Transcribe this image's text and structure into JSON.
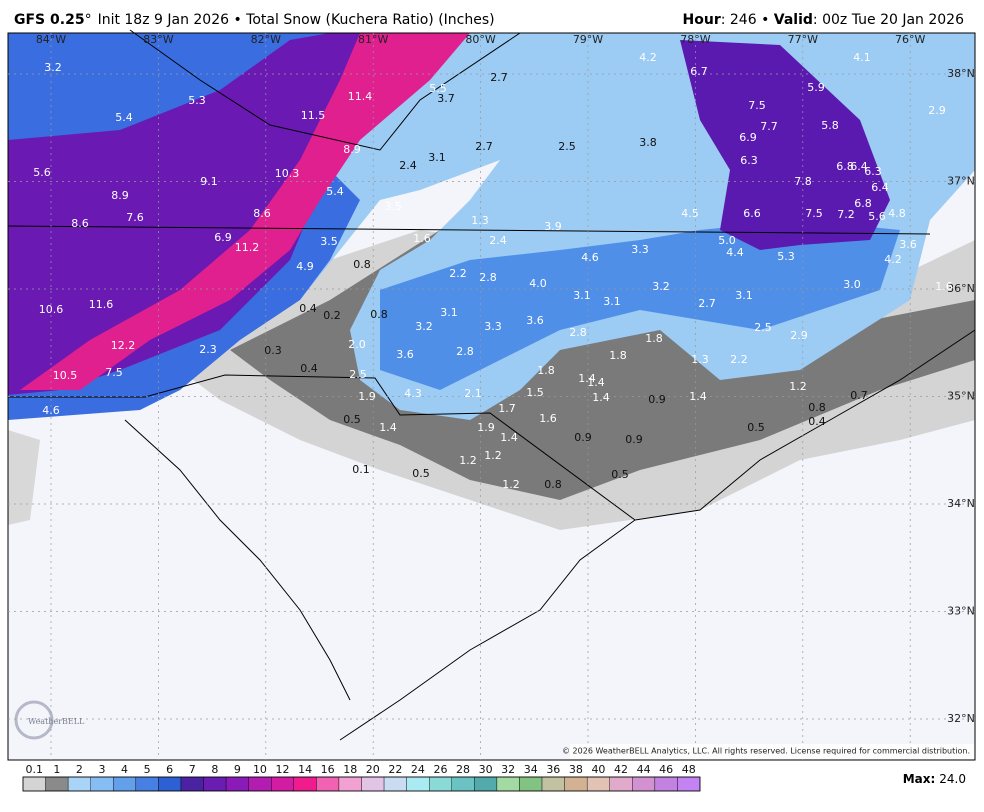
{
  "header": {
    "model": "GFS 0.25",
    "degree": "°",
    "init": "Init 18z 9 Jan 2026 • Total Snow (Kuchera Ratio) (Inches)",
    "hour_key": "Hour",
    "hour_val": ": 246 • ",
    "valid_key": "Valid",
    "valid_val": ": 00z Tue 20 Jan 2026"
  },
  "longitudes": [
    "84°W",
    "83°W",
    "82°W",
    "81°W",
    "80°W",
    "79°W",
    "78°W",
    "77°W",
    "76°W"
  ],
  "latitudes": [
    "38°N",
    "37°N",
    "36°N",
    "35°N",
    "34°N",
    "33°N",
    "32°N"
  ],
  "map_labels": [
    "3.2",
    "5.3",
    "5.4",
    "11.4",
    "5.5",
    "3.7",
    "2.7",
    "4.2",
    "6.7",
    "4.1",
    "5.9",
    "7.5",
    "2.9",
    "7.7",
    "5.8",
    "11.5",
    "6.9",
    "3.8",
    "2.7",
    "2.5",
    "8.9",
    "3.1",
    "6.3",
    "2.4",
    "6.8",
    "6.4",
    "6.3",
    "5.6",
    "10.3",
    "9.1",
    "7.8",
    "6.4",
    "8.9",
    "5.4",
    "3.5",
    "6.8",
    "7.6",
    "8.6",
    "4.5",
    "6.6",
    "7.5",
    "7.2",
    "5.6",
    "4.8",
    "8.6",
    "1.3",
    "3.9",
    "6.9",
    "1.6",
    "2.4",
    "3.5",
    "5.0",
    "3.6",
    "11.2",
    "3.3",
    "4.4",
    "5.3",
    "4.6",
    "4.2",
    "0.8",
    "4.9",
    "2.2",
    "2.8",
    "4.0",
    "3.2",
    "3.0",
    "1.6",
    "3.1",
    "3.1",
    "2.7",
    "3.1",
    "10.6",
    "11.6",
    "0.4",
    "0.2",
    "0.8",
    "3.1",
    "3.2",
    "3.3",
    "3.6",
    "2.8",
    "2.5",
    "2.9",
    "1.8",
    "12.2",
    "2.3",
    "0.3",
    "2.0",
    "3.6",
    "2.8",
    "1.8",
    "1.3",
    "2.2",
    "0.4",
    "1.8",
    "10.5",
    "7.5",
    "2.5",
    "1.4",
    "1.4",
    "1.2",
    "4.3",
    "2.1",
    "1.5",
    "1.9",
    "1.4",
    "0.9",
    "1.4",
    "0.7",
    "4.6",
    "1.7",
    "0.8",
    "0.5",
    "1.6",
    "0.4",
    "0.5",
    "1.4",
    "1.9",
    "1.4",
    "0.9",
    "0.9",
    "1.2",
    "1.2",
    "0.1",
    "0.5",
    "0.5",
    "1.2",
    "0.8"
  ],
  "copyright": "© 2026 WeatherBELL Analytics, LLC. All rights reserved. License required for commercial distribution.",
  "logo": "WeatherBELL",
  "colorbar": {
    "labels": [
      "0.1",
      "1",
      "2",
      "3",
      "4",
      "5",
      "6",
      "7",
      "8",
      "9",
      "10",
      "12",
      "14",
      "16",
      "18",
      "20",
      "22",
      "24",
      "26",
      "28",
      "30",
      "32",
      "34",
      "36",
      "38",
      "40",
      "42",
      "44",
      "46",
      "48"
    ],
    "colors": [
      "#d4d4d4",
      "#8a8a8a",
      "#a9d4f7",
      "#86bdf2",
      "#649fea",
      "#4680e2",
      "#2d60d2",
      "#4a22a2",
      "#6a1db2",
      "#8b1bb8",
      "#b21cb0",
      "#d21ca2",
      "#f01c8e",
      "#f262b2",
      "#f2a2d2",
      "#e2c4e6",
      "#cadcf2",
      "#aaeaf2",
      "#8adad8",
      "#6ac2c2",
      "#52aaaa",
      "#a2daa2",
      "#82c282",
      "#c2c2a2",
      "#d2b292",
      "#e2c2b2",
      "#e2aaca",
      "#d292d2",
      "#c282e2",
      "#c482f2"
    ]
  },
  "max_key": "Max:",
  "max_val": "24.0"
}
